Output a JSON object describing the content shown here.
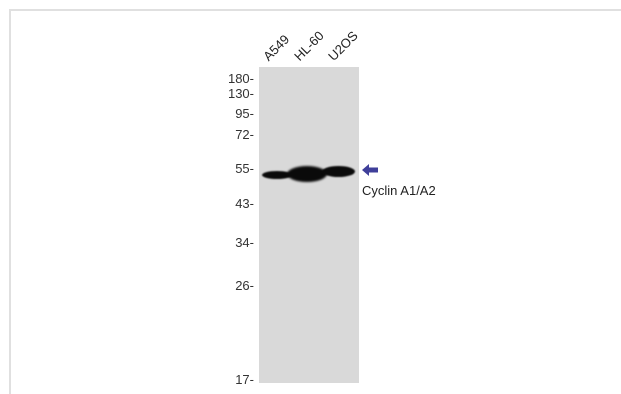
{
  "lanes": [
    "A549",
    "HL-60",
    "U2OS"
  ],
  "markers": [
    "180-",
    "130-",
    "95-",
    "72-",
    "55-",
    "43-",
    "34-",
    "26-",
    "17-"
  ],
  "protein_label": "Cyclin A1/A2",
  "colors": {
    "membrane": "#d9d9d9",
    "band": "#0a0a0a",
    "arrow": "#3f3f9a"
  },
  "icons": {
    "arrow": "left-arrow-icon"
  }
}
